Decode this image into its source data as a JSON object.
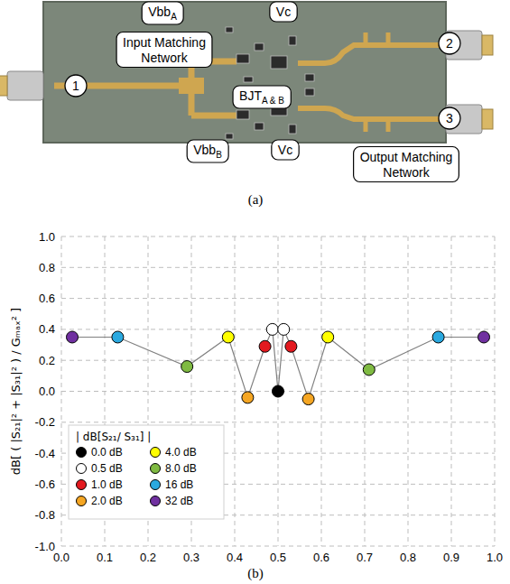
{
  "board": {
    "caption": "(a)",
    "ports": [
      "1",
      "2",
      "3"
    ],
    "labels": [
      {
        "text": "Vbb",
        "sub": "A"
      },
      {
        "text": "Vc"
      },
      {
        "text": "Input Matching Network"
      },
      {
        "text": "BJT",
        "sub": "A & B"
      },
      {
        "text": "Vbb",
        "sub": "B"
      },
      {
        "text": "Vc"
      },
      {
        "text": "Output Matching Network"
      }
    ]
  },
  "chart_data": {
    "type": "scatter",
    "caption": "(b)",
    "y_label": "dB[ ( |S₂₁|² + |S₃₁|² ) / Gₘₐₓ² ]",
    "xlim": [
      0,
      1
    ],
    "ylim": [
      -1,
      1
    ],
    "xticks": [
      {
        "value": 0,
        "label": "0.0"
      },
      0.1,
      0.2,
      0.3,
      0.4,
      0.5,
      0.6,
      0.7,
      0.8,
      0.9,
      {
        "value": 1,
        "label": "1.0"
      }
    ],
    "yticks": [
      {
        "value": -1,
        "label": "-1.0"
      },
      -0.8,
      -0.6,
      -0.4,
      -0.2,
      {
        "value": 0,
        "label": "0.0"
      },
      0.2,
      0.4,
      0.6,
      0.8,
      {
        "value": 1,
        "label": "1.0"
      }
    ],
    "grid": true,
    "legend": "lower left",
    "legend_title": "| dB[S₂₁/ S₃₁] |",
    "legend_entries": [
      {
        "label": "0.0 dB",
        "color": "#000000"
      },
      {
        "label": "0.5 dB",
        "color": "#ffffff"
      },
      {
        "label": "1.0 dB",
        "color": "#e3191f"
      },
      {
        "label": "2.0 dB",
        "color": "#f5a623"
      },
      {
        "label": "4.0 dB",
        "color": "#ffff00"
      },
      {
        "label": "8.0 dB",
        "color": "#7fba42"
      },
      {
        "label": "16 dB",
        "color": "#2aa9e0"
      },
      {
        "label": "32 dB",
        "color": "#7030a0"
      }
    ],
    "series": [
      {
        "type": "line",
        "color": "#808080",
        "marker": "circle",
        "line_style": "solid",
        "x": [
          0.025,
          0.13,
          0.29,
          0.385,
          0.43,
          0.47,
          0.487,
          0.5,
          0.513,
          0.53,
          0.57,
          0.615,
          0.71,
          0.87,
          0.975
        ],
        "values": [
          0.35,
          0.35,
          0.16,
          0.35,
          -0.04,
          0.29,
          0.4,
          0.0,
          0.4,
          0.29,
          -0.05,
          0.35,
          0.14,
          0.35,
          0.35
        ],
        "colors": [
          "#7030a0",
          "#2aa9e0",
          "#7fba42",
          "#ffff00",
          "#f5a623",
          "#e3191f",
          "#ffffff",
          "#000000",
          "#ffffff",
          "#e3191f",
          "#f5a623",
          "#ffff00",
          "#7fba42",
          "#2aa9e0",
          "#7030a0"
        ]
      }
    ]
  }
}
